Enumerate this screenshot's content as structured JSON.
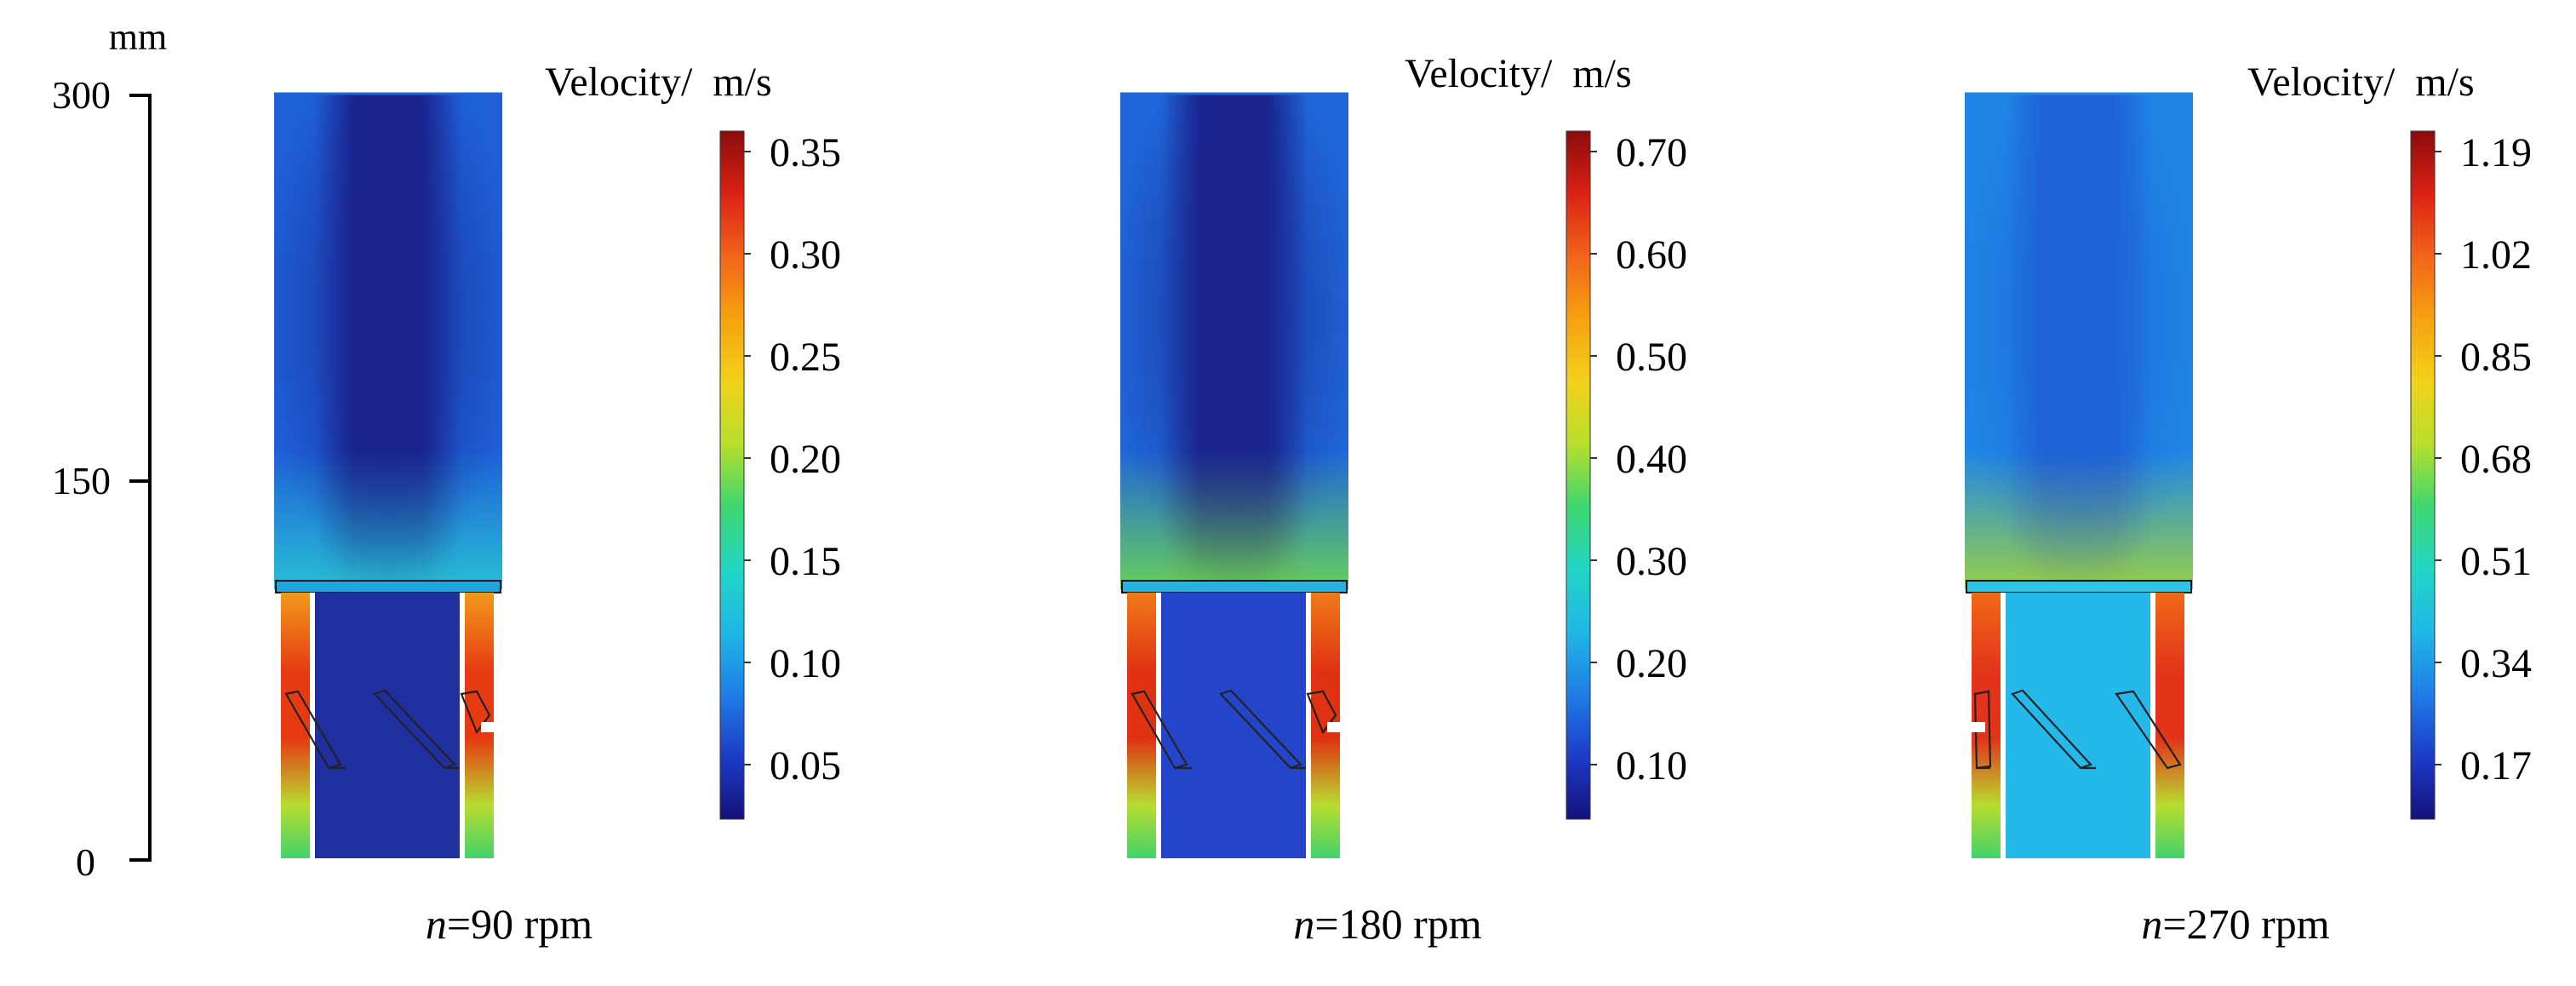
{
  "axis": {
    "unit": "mm",
    "ticks": [
      "300",
      "150",
      "0"
    ]
  },
  "colormap": [
    "#14117a",
    "#1c3cc8",
    "#1f7ee6",
    "#1fb8e6",
    "#22d6c4",
    "#3fd770",
    "#b7df2a",
    "#f3d11a",
    "#f6a20f",
    "#f2641b",
    "#db2214",
    "#8a0c0c"
  ],
  "panels": [
    {
      "caption_var": "n",
      "caption_rest": "=90 rpm",
      "colorbar_title": "Velocity/  m/s",
      "colorbar_ticks": [
        "0.35",
        "0.30",
        "0.25",
        "0.20",
        "0.15",
        "0.10",
        "0.05"
      ],
      "field": {
        "top": "#1e5fd6",
        "core": "#1a248f",
        "jet": "#29c8d6",
        "bottom_core": "#1f2f9e",
        "wall": "#f29a1a",
        "wall_hot": "#e53a12"
      }
    },
    {
      "caption_var": "n",
      "caption_rest": "=180 rpm",
      "colorbar_title": "Velocity/  m/s",
      "colorbar_ticks": [
        "0.70",
        "0.60",
        "0.50",
        "0.40",
        "0.30",
        "0.20",
        "0.10"
      ],
      "field": {
        "top": "#1f66d8",
        "core": "#1a258f",
        "jet": "#6fd850",
        "bottom_core": "#2445c8",
        "wall": "#f07a18",
        "wall_hot": "#df3212"
      }
    },
    {
      "caption_var": "n",
      "caption_rest": "=270 rpm",
      "colorbar_title": "Velocity/  m/s",
      "colorbar_ticks": [
        "1.19",
        "1.02",
        "0.85",
        "0.68",
        "0.51",
        "0.34",
        "0.17"
      ],
      "field": {
        "top": "#1f86e6",
        "core": "#1e62d6",
        "jet": "#a2d83a",
        "bottom_core": "#25b9ea",
        "wall": "#f06a18",
        "wall_hot": "#e2341a"
      }
    }
  ]
}
